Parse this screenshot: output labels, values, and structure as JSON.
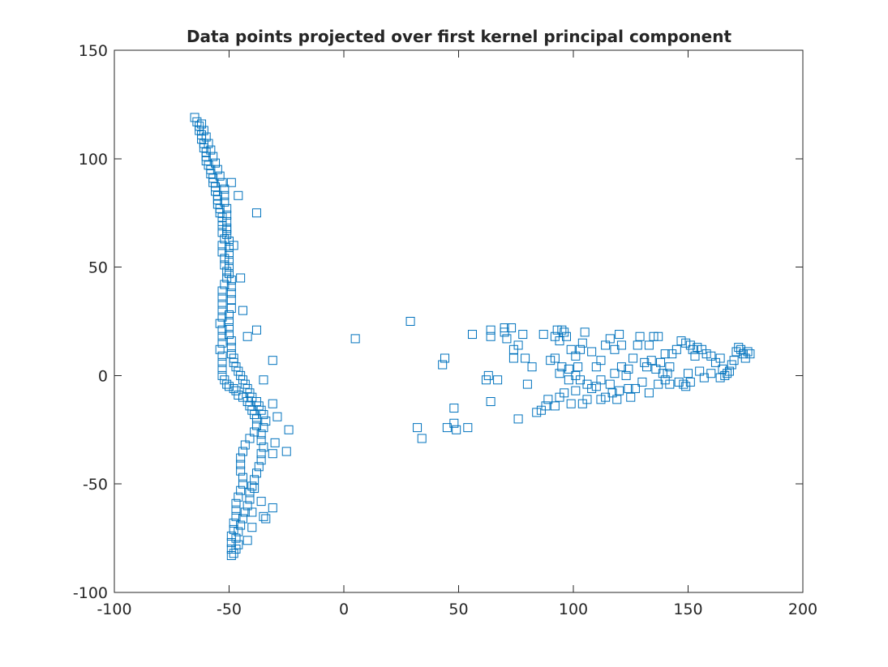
{
  "chart_data": {
    "type": "scatter",
    "title": "Data points projected over first kernel principal component",
    "xlabel": "",
    "ylabel": "",
    "xlim": [
      -100,
      200
    ],
    "ylim": [
      -100,
      150
    ],
    "xticks": [
      -100,
      -50,
      0,
      50,
      100,
      150,
      200
    ],
    "yticks": [
      -100,
      -50,
      0,
      50,
      100,
      150
    ],
    "grid": false,
    "marker": "square",
    "color": "#0072BD",
    "series": [
      {
        "points": [
          [
            -65,
            119
          ],
          [
            -64,
            117
          ],
          [
            -63,
            115
          ],
          [
            -63,
            113
          ],
          [
            -62,
            111
          ],
          [
            -62,
            109
          ],
          [
            -61,
            107
          ],
          [
            -61,
            105
          ],
          [
            -60,
            103
          ],
          [
            -60,
            101
          ],
          [
            -60,
            99
          ],
          [
            -59,
            97
          ],
          [
            -58,
            95
          ],
          [
            -58,
            93
          ],
          [
            -57,
            91
          ],
          [
            -57,
            89
          ],
          [
            -56,
            87
          ],
          [
            -56,
            85
          ],
          [
            -55,
            83
          ],
          [
            -55,
            81
          ],
          [
            -55,
            79
          ],
          [
            -54,
            77
          ],
          [
            -54,
            75
          ],
          [
            -53,
            73
          ],
          [
            -53,
            71
          ],
          [
            -53,
            69
          ],
          [
            -53,
            66
          ],
          [
            -52,
            63
          ],
          [
            -53,
            60
          ],
          [
            -53,
            57
          ],
          [
            -52,
            54
          ],
          [
            -52,
            51
          ],
          [
            -51,
            48
          ],
          [
            -51,
            45
          ],
          [
            -52,
            42
          ],
          [
            -53,
            39
          ],
          [
            -53,
            36
          ],
          [
            -53,
            33
          ],
          [
            -53,
            30
          ],
          [
            -53,
            27
          ],
          [
            -54,
            24
          ],
          [
            -53,
            21
          ],
          [
            -53,
            18
          ],
          [
            -53,
            15
          ],
          [
            -54,
            12
          ],
          [
            -53,
            9
          ],
          [
            -53,
            6
          ],
          [
            -53,
            3
          ],
          [
            -53,
            0
          ],
          [
            -52,
            -2
          ],
          [
            -51,
            -4
          ],
          [
            -50,
            -5
          ],
          [
            -48,
            -6
          ],
          [
            -47,
            -7
          ],
          [
            -46,
            -9
          ],
          [
            -44,
            -10
          ],
          [
            -42,
            -12
          ],
          [
            -41,
            -14
          ],
          [
            -40,
            -16
          ],
          [
            -39,
            -18
          ],
          [
            -38,
            -20
          ],
          [
            -38,
            -23
          ],
          [
            -39,
            -26
          ],
          [
            -41,
            -29
          ],
          [
            -43,
            -32
          ],
          [
            -44,
            -35
          ],
          [
            -45,
            -38
          ],
          [
            -45,
            -41
          ],
          [
            -45,
            -44
          ],
          [
            -44,
            -47
          ],
          [
            -44,
            -50
          ],
          [
            -45,
            -53
          ],
          [
            -46,
            -56
          ],
          [
            -47,
            -59
          ],
          [
            -47,
            -62
          ],
          [
            -47,
            -65
          ],
          [
            -48,
            -68
          ],
          [
            -48,
            -71
          ],
          [
            -49,
            -74
          ],
          [
            -49,
            -77
          ],
          [
            -49,
            -80
          ],
          [
            -49,
            -83
          ],
          [
            -48,
            -82
          ],
          [
            -47,
            -80
          ],
          [
            -46,
            -78
          ],
          [
            -47,
            -75
          ],
          [
            -46,
            -72
          ],
          [
            -45,
            -69
          ],
          [
            -44,
            -66
          ],
          [
            -43,
            -63
          ],
          [
            -42,
            -60
          ],
          [
            -41,
            -57
          ],
          [
            -41,
            -54
          ],
          [
            -40,
            -51
          ],
          [
            -39,
            -48
          ],
          [
            -38,
            -45
          ],
          [
            -37,
            -42
          ],
          [
            -36,
            -39
          ],
          [
            -36,
            -36
          ],
          [
            -35,
            -33
          ],
          [
            -36,
            -30
          ],
          [
            -36,
            -27
          ],
          [
            -35,
            -24
          ],
          [
            -34,
            -21
          ],
          [
            -35,
            -18
          ],
          [
            -36,
            -16
          ],
          [
            -37,
            -14
          ],
          [
            -38,
            -12
          ],
          [
            -40,
            -10
          ],
          [
            -41,
            -8
          ],
          [
            -42,
            -6
          ],
          [
            -43,
            -4
          ],
          [
            -44,
            -2
          ],
          [
            -45,
            0
          ],
          [
            -46,
            2
          ],
          [
            -47,
            4
          ],
          [
            -48,
            6
          ],
          [
            -48,
            8
          ],
          [
            -49,
            10
          ],
          [
            -49,
            13
          ],
          [
            -49,
            16
          ],
          [
            -50,
            19
          ],
          [
            -50,
            22
          ],
          [
            -50,
            25
          ],
          [
            -50,
            28
          ],
          [
            -49,
            31
          ],
          [
            -49,
            35
          ],
          [
            -49,
            38
          ],
          [
            -49,
            41
          ],
          [
            -49,
            44
          ],
          [
            -50,
            47
          ],
          [
            -50,
            50
          ],
          [
            -50,
            53
          ],
          [
            -50,
            56
          ],
          [
            -50,
            59
          ],
          [
            -50,
            62
          ],
          [
            -51,
            65
          ],
          [
            -51,
            68
          ],
          [
            -51,
            71
          ],
          [
            -51,
            74
          ],
          [
            -51,
            77
          ],
          [
            -52,
            80
          ],
          [
            -52,
            83
          ],
          [
            -52,
            86
          ],
          [
            -53,
            89
          ],
          [
            -54,
            92
          ],
          [
            -55,
            95
          ],
          [
            -56,
            98
          ],
          [
            -57,
            101
          ],
          [
            -58,
            104
          ],
          [
            -59,
            107
          ],
          [
            -60,
            110
          ],
          [
            -61,
            113
          ],
          [
            -62,
            116
          ],
          [
            -49,
            89
          ],
          [
            -46,
            83
          ],
          [
            -38,
            75
          ],
          [
            -51,
            67
          ],
          [
            -48,
            60
          ],
          [
            -45,
            45
          ],
          [
            -44,
            30
          ],
          [
            -38,
            21
          ],
          [
            -42,
            18
          ],
          [
            -31,
            7
          ],
          [
            -35,
            -2
          ],
          [
            -31,
            -13
          ],
          [
            -29,
            -19
          ],
          [
            -24,
            -25
          ],
          [
            -30,
            -31
          ],
          [
            -25,
            -35
          ],
          [
            -31,
            -36
          ],
          [
            -31,
            -61
          ],
          [
            -35,
            -65
          ],
          [
            -34,
            -66
          ],
          [
            -40,
            -63
          ],
          [
            -42,
            -76
          ],
          [
            -36,
            -58
          ],
          [
            -39,
            -52
          ],
          [
            -40,
            -70
          ]
        ]
      },
      {
        "points": [
          [
            5,
            17
          ],
          [
            29,
            25
          ],
          [
            56,
            19
          ],
          [
            64,
            21
          ],
          [
            64,
            18
          ],
          [
            70,
            22
          ],
          [
            70,
            20
          ],
          [
            73,
            22
          ],
          [
            71,
            17
          ],
          [
            78,
            19
          ],
          [
            74,
            12
          ],
          [
            76,
            14
          ],
          [
            74,
            8
          ],
          [
            79,
            8
          ],
          [
            82,
            4
          ],
          [
            80,
            -4
          ],
          [
            87,
            19
          ],
          [
            90,
            7
          ],
          [
            92,
            18
          ],
          [
            93,
            21
          ],
          [
            95,
            21
          ],
          [
            94,
            16
          ],
          [
            96,
            20
          ],
          [
            97,
            18
          ],
          [
            92,
            8
          ],
          [
            95,
            4
          ],
          [
            94,
            1
          ],
          [
            98,
            3
          ],
          [
            99,
            12
          ],
          [
            101,
            9
          ],
          [
            103,
            12
          ],
          [
            104,
            15
          ],
          [
            105,
            20
          ],
          [
            102,
            4
          ],
          [
            101,
            0
          ],
          [
            103,
            -2
          ],
          [
            106,
            -4
          ],
          [
            98,
            -2
          ],
          [
            96,
            -8
          ],
          [
            94,
            -10
          ],
          [
            99,
            -13
          ],
          [
            101,
            -7
          ],
          [
            104,
            -13
          ],
          [
            106,
            -11
          ],
          [
            108,
            11
          ],
          [
            110,
            4
          ],
          [
            112,
            7
          ],
          [
            114,
            14
          ],
          [
            116,
            17
          ],
          [
            118,
            12
          ],
          [
            120,
            19
          ],
          [
            121,
            14
          ],
          [
            121,
            4
          ],
          [
            118,
            1
          ],
          [
            116,
            -4
          ],
          [
            114,
            -10
          ],
          [
            112,
            -11
          ],
          [
            117,
            -8
          ],
          [
            119,
            -11
          ],
          [
            120,
            -7
          ],
          [
            123,
            0
          ],
          [
            124,
            3
          ],
          [
            126,
            8
          ],
          [
            128,
            14
          ],
          [
            129,
            18
          ],
          [
            131,
            6
          ],
          [
            132,
            4
          ],
          [
            130,
            -3
          ],
          [
            127,
            -6
          ],
          [
            125,
            -10
          ],
          [
            133,
            14
          ],
          [
            135,
            18
          ],
          [
            137,
            18
          ],
          [
            134,
            7
          ],
          [
            136,
            3
          ],
          [
            138,
            6
          ],
          [
            139,
            1
          ],
          [
            140,
            10
          ],
          [
            141,
            1
          ],
          [
            142,
            4
          ],
          [
            140,
            -2
          ],
          [
            142,
            -4
          ],
          [
            143,
            10
          ],
          [
            145,
            12
          ],
          [
            147,
            16
          ],
          [
            149,
            15
          ],
          [
            151,
            14
          ],
          [
            152,
            12
          ],
          [
            153,
            9
          ],
          [
            150,
            1
          ],
          [
            148,
            -4
          ],
          [
            146,
            -3
          ],
          [
            154,
            13
          ],
          [
            156,
            12
          ],
          [
            158,
            10
          ],
          [
            160,
            9
          ],
          [
            162,
            6
          ],
          [
            164,
            8
          ],
          [
            165,
            3
          ],
          [
            166,
            0
          ],
          [
            168,
            2
          ],
          [
            170,
            7
          ],
          [
            171,
            11
          ],
          [
            173,
            12
          ],
          [
            174,
            10
          ],
          [
            175,
            8
          ],
          [
            176,
            11
          ],
          [
            177,
            10
          ],
          [
            172,
            13
          ],
          [
            169,
            5
          ],
          [
            167,
            1
          ],
          [
            164,
            -1
          ],
          [
            160,
            1
          ],
          [
            157,
            -1
          ],
          [
            155,
            2
          ],
          [
            151,
            -3
          ],
          [
            149,
            -5
          ],
          [
            43,
            5
          ],
          [
            44,
            8
          ],
          [
            45,
            -24
          ],
          [
            48,
            -22
          ],
          [
            49,
            -25
          ],
          [
            48,
            -15
          ],
          [
            54,
            -24
          ],
          [
            32,
            -24
          ],
          [
            34,
            -29
          ],
          [
            62,
            -2
          ],
          [
            63,
            0
          ],
          [
            64,
            -12
          ],
          [
            67,
            -2
          ],
          [
            76,
            -20
          ],
          [
            84,
            -17
          ],
          [
            86,
            -16
          ],
          [
            88,
            -14
          ],
          [
            89,
            -11
          ],
          [
            92,
            -14
          ],
          [
            108,
            -6
          ],
          [
            110,
            -5
          ],
          [
            112,
            -2
          ],
          [
            124,
            -6
          ],
          [
            133,
            -8
          ],
          [
            137,
            -4
          ]
        ]
      }
    ]
  }
}
